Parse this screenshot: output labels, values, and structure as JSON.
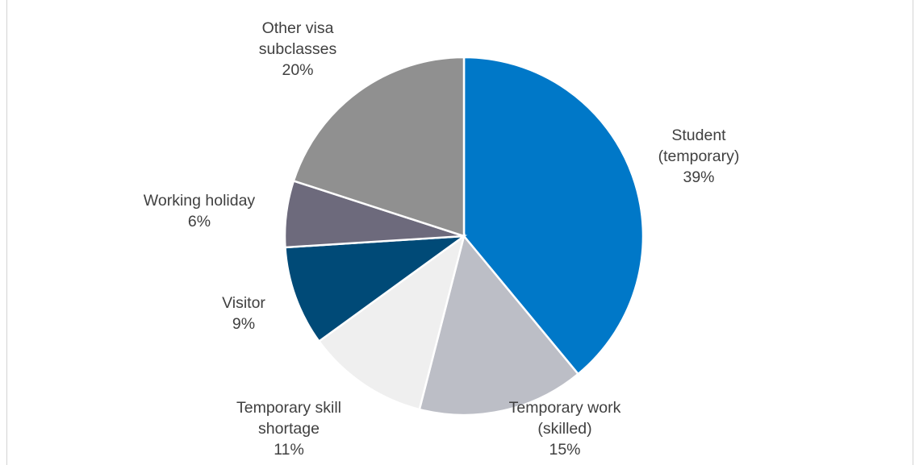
{
  "chart_data": {
    "type": "pie",
    "title": "",
    "slices": [
      {
        "label_lines": [
          "Student",
          "(temporary)"
        ],
        "pct_label": "39%",
        "value": 39,
        "color": "#0078c8"
      },
      {
        "label_lines": [
          "Temporary work",
          "(skilled)"
        ],
        "pct_label": "15%",
        "value": 15,
        "color": "#bcbec6"
      },
      {
        "label_lines": [
          "Temporary skill",
          "shortage"
        ],
        "pct_label": "11%",
        "value": 11,
        "color": "#efefef"
      },
      {
        "label_lines": [
          "Visitor"
        ],
        "pct_label": "9%",
        "value": 9,
        "color": "#004a77"
      },
      {
        "label_lines": [
          "Working holiday"
        ],
        "pct_label": "6%",
        "value": 6,
        "color": "#6d6a7c"
      },
      {
        "label_lines": [
          "Other visa",
          "subclasses"
        ],
        "pct_label": "20%",
        "value": 20,
        "color": "#909090"
      }
    ]
  }
}
